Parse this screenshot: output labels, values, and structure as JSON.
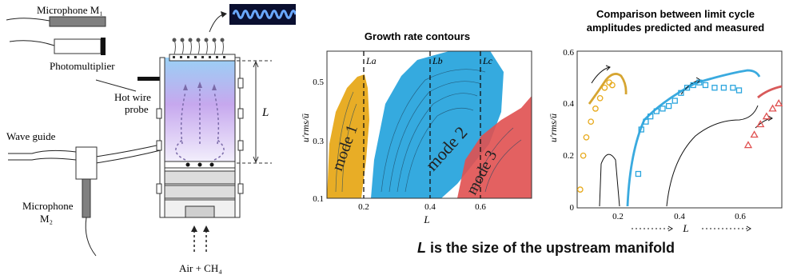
{
  "schematic": {
    "microphone_m1": "Microphone M₁",
    "photomultiplier": "Photomultiplier",
    "hot_wire_probe_line1": "Hot wire",
    "hot_wire_probe_line2": "probe",
    "wave_guide": "Wave guide",
    "microphone_m2_line1": "Microphone",
    "microphone_m2_line2": "M₂",
    "length_label": "L",
    "inlet_label": "Air + CH₄"
  },
  "contours": {
    "title": "Growth rate contours",
    "ylabel": "u′rms/ū",
    "xlabel": "L",
    "xticks": [
      "0.2",
      "0.4",
      "0.6"
    ],
    "yticks": [
      "0.1",
      "0.3",
      "0.5"
    ],
    "markers": [
      "La",
      "Lb",
      "Lc"
    ],
    "mode_labels": [
      "mode 1",
      "mode 2",
      "mode 3"
    ],
    "colors": {
      "mode1": "#e7a91a",
      "mode2": "#2aa5dd",
      "mode3": "#e05050"
    }
  },
  "comparison": {
    "title_line1": "Comparison between limit cycle",
    "title_line2": "amplitudes predicted and measured",
    "ylabel": "u′rms/ū",
    "xlabel": "L",
    "xticks": [
      "0.2",
      "0.4",
      "0.6"
    ],
    "yticks": [
      "0",
      "0.2",
      "0.4",
      "0.6"
    ]
  },
  "caption": {
    "symbol": "L",
    "text": " is the size of the upstream manifold"
  },
  "chart_data": {
    "type": "scatter",
    "title": "Comparison between limit cycle amplitudes predicted and measured",
    "xlabel": "L",
    "ylabel": "u′rms/ū",
    "xlim": [
      0.1,
      0.77
    ],
    "ylim": [
      0,
      0.6
    ],
    "series": [
      {
        "values": [
          [
            0.11,
            0.07
          ],
          [
            0.12,
            0.2
          ],
          [
            0.13,
            0.27
          ],
          [
            0.145,
            0.33
          ],
          [
            0.16,
            0.38
          ],
          [
            0.175,
            0.42
          ],
          [
            0.19,
            0.46
          ],
          [
            0.205,
            0.48
          ],
          [
            0.215,
            0.47
          ]
        ]
      },
      {
        "values": [
          [
            0.3,
            0.13
          ],
          [
            0.31,
            0.3
          ],
          [
            0.325,
            0.33
          ],
          [
            0.34,
            0.35
          ],
          [
            0.36,
            0.37
          ],
          [
            0.38,
            0.38
          ],
          [
            0.4,
            0.39
          ],
          [
            0.42,
            0.41
          ],
          [
            0.44,
            0.44
          ],
          [
            0.46,
            0.46
          ],
          [
            0.48,
            0.47
          ],
          [
            0.5,
            0.48
          ],
          [
            0.52,
            0.47
          ],
          [
            0.55,
            0.46
          ],
          [
            0.58,
            0.46
          ],
          [
            0.61,
            0.46
          ],
          [
            0.63,
            0.45
          ]
        ]
      },
      {
        "values": [
          [
            0.66,
            0.24
          ],
          [
            0.68,
            0.28
          ],
          [
            0.7,
            0.32
          ],
          [
            0.72,
            0.35
          ],
          [
            0.74,
            0.38
          ],
          [
            0.76,
            0.4
          ]
        ]
      }
    ]
  }
}
